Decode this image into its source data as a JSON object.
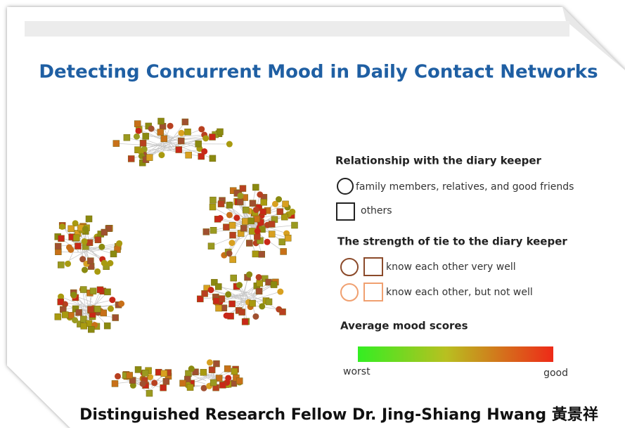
{
  "title": "Detecting Concurrent Mood in Daily Contact Networks",
  "legend": {
    "relationship": {
      "heading": "Relationship with the diary keeper",
      "circle": "family members, relatives, and good friends",
      "square": "others"
    },
    "strength": {
      "heading": "The strength of tie to the diary keeper",
      "strong": "know each other very well",
      "weak": "know each other, but not well"
    },
    "mood": {
      "heading": "Average mood scores",
      "low": "worst",
      "high": "good"
    }
  },
  "caption": "Distinguished Research Fellow Dr. Jing-Shiang Hwang 黃景祥"
}
